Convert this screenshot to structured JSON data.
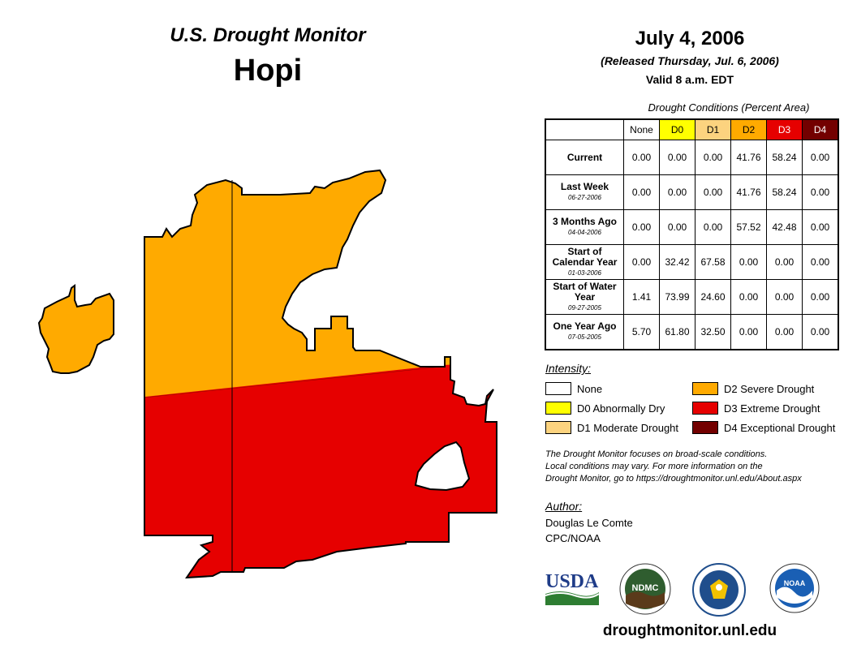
{
  "header": {
    "monitor_title": "U.S. Drought Monitor",
    "region": "Hopi",
    "date": "July 4, 2006",
    "released": "(Released Thursday, Jul. 6, 2006)",
    "valid": "Valid 8 a.m. EDT"
  },
  "table": {
    "caption": "Drought Conditions (Percent Area)",
    "columns": [
      "None",
      "D0",
      "D1",
      "D2",
      "D3",
      "D4"
    ],
    "column_colors": [
      "#ffffff",
      "#ffff00",
      "#fcd37f",
      "#ffaa00",
      "#e60000",
      "#730000"
    ],
    "rows": [
      {
        "label": "Current",
        "date": "",
        "values": [
          "0.00",
          "0.00",
          "0.00",
          "41.76",
          "58.24",
          "0.00"
        ]
      },
      {
        "label": "Last Week",
        "date": "06-27-2006",
        "values": [
          "0.00",
          "0.00",
          "0.00",
          "41.76",
          "58.24",
          "0.00"
        ]
      },
      {
        "label": "3 Months Ago",
        "date": "04-04-2006",
        "values": [
          "0.00",
          "0.00",
          "0.00",
          "57.52",
          "42.48",
          "0.00"
        ]
      },
      {
        "label": "Start of Calendar Year",
        "date": "01-03-2006",
        "values": [
          "0.00",
          "32.42",
          "67.58",
          "0.00",
          "0.00",
          "0.00"
        ]
      },
      {
        "label": "Start of Water Year",
        "date": "09-27-2005",
        "values": [
          "1.41",
          "73.99",
          "24.60",
          "0.00",
          "0.00",
          "0.00"
        ]
      },
      {
        "label": "One Year Ago",
        "date": "07-05-2005",
        "values": [
          "5.70",
          "61.80",
          "32.50",
          "0.00",
          "0.00",
          "0.00"
        ]
      }
    ]
  },
  "legend": {
    "title": "Intensity:",
    "items": [
      {
        "label": "None",
        "color": "#ffffff"
      },
      {
        "label": "D0 Abnormally Dry",
        "color": "#ffff00"
      },
      {
        "label": "D1 Moderate Drought",
        "color": "#fcd37f"
      },
      {
        "label": "D2 Severe Drought",
        "color": "#ffaa00"
      },
      {
        "label": "D3 Extreme Drought",
        "color": "#e60000"
      },
      {
        "label": "D4 Exceptional Drought",
        "color": "#730000"
      }
    ]
  },
  "disclaimer": {
    "line1": "The Drought Monitor focuses on broad-scale conditions.",
    "line2": "Local conditions may vary. For more information on the",
    "line3": "Drought Monitor, go to https://droughtmonitor.unl.edu/About.aspx"
  },
  "author": {
    "label": "Author:",
    "name": "Douglas Le Comte",
    "org": "CPC/NOAA"
  },
  "logos": {
    "usda": "USDA",
    "ndmc": "NDMC",
    "noaa": "NOAA"
  },
  "website": "droughtmonitor.unl.edu",
  "map": {
    "d2_color": "#ffaa00",
    "d3_color": "#e60000"
  }
}
